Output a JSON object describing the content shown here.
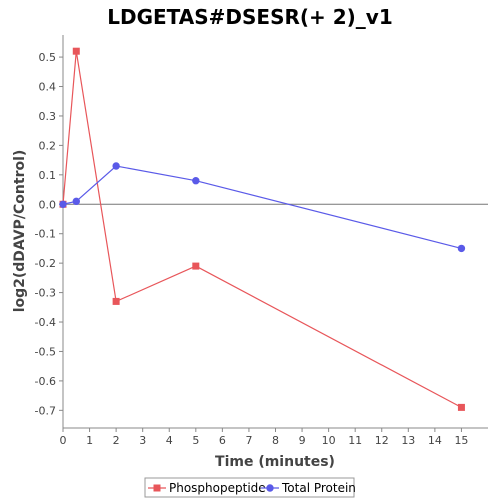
{
  "chart_data": {
    "type": "line",
    "title": "LDGETAS#DSESR(+ 2)_v1",
    "xlabel": "Time (minutes)",
    "ylabel": "log2(dDAVP/Control)",
    "xlim": [
      0,
      16
    ],
    "ylim": [
      -0.76,
      0.575
    ],
    "xticks": [
      0,
      1,
      2,
      3,
      4,
      5,
      6,
      7,
      8,
      9,
      10,
      11,
      12,
      13,
      14,
      15
    ],
    "yticks": [
      0.5,
      0.4,
      0.3,
      0.2,
      0.1,
      0.0,
      -0.1,
      -0.2,
      -0.3,
      -0.4,
      -0.5,
      -0.6,
      -0.7
    ],
    "ytick_labels": [
      "0.5",
      "0.4",
      "0.3",
      "0.2",
      "0.1",
      "0.0",
      "-0.1",
      "-0.2",
      "-0.3",
      "-0.4",
      "-0.5",
      "-0.6",
      "-0.7"
    ],
    "zero_line": true,
    "grid": false,
    "legend_position": "bottom",
    "series": [
      {
        "name": "Phosphopeptide",
        "color": "#e8565a",
        "marker": "square",
        "x": [
          0,
          0.5,
          2,
          5,
          15
        ],
        "y": [
          0.0,
          0.52,
          -0.33,
          -0.21,
          -0.69
        ]
      },
      {
        "name": "Total Protein",
        "color": "#5a5ae8",
        "marker": "circle",
        "x": [
          0,
          0.5,
          2,
          5,
          15
        ],
        "y": [
          0.0,
          0.01,
          0.13,
          0.08,
          -0.15
        ]
      }
    ]
  }
}
